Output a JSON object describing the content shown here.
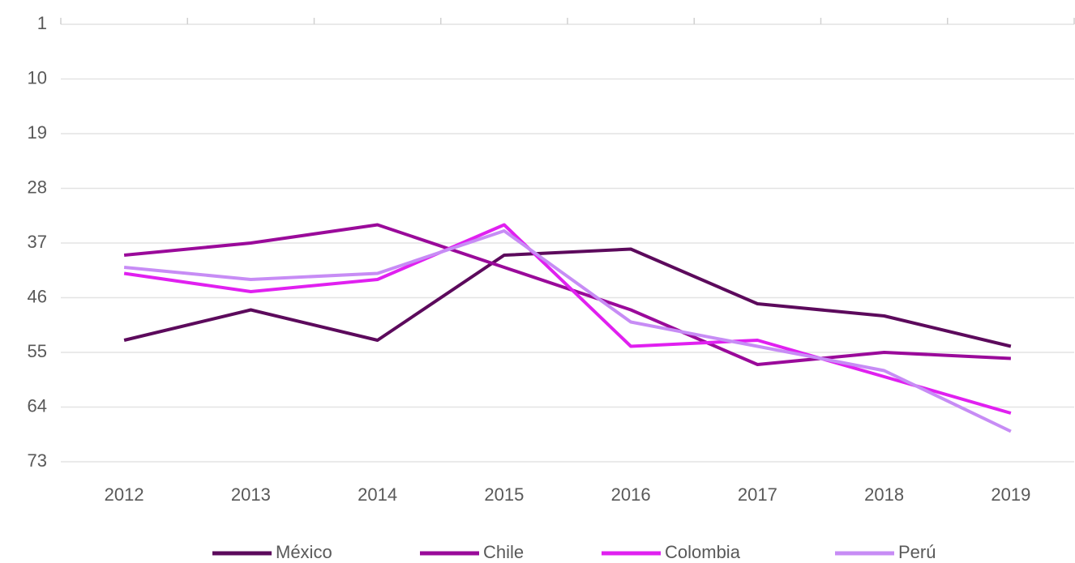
{
  "chart_data": {
    "type": "line",
    "categories": [
      "2012",
      "2013",
      "2014",
      "2015",
      "2016",
      "2017",
      "2018",
      "2019"
    ],
    "series": [
      {
        "name": "México",
        "color": "#5c0a5c",
        "values": [
          53,
          48,
          53,
          39,
          38,
          47,
          49,
          54
        ]
      },
      {
        "name": "Chile",
        "color": "#9a0a9a",
        "values": [
          39,
          37,
          34,
          41,
          48,
          57,
          55,
          56
        ]
      },
      {
        "name": "Colombia",
        "color": "#e020f0",
        "values": [
          42,
          45,
          43,
          34,
          54,
          53,
          59,
          65
        ]
      },
      {
        "name": "Perú",
        "color": "#c78cf5",
        "values": [
          41,
          43,
          42,
          35,
          50,
          54,
          58,
          68
        ]
      }
    ],
    "ylim": [
      1,
      73
    ],
    "y_inverted": true,
    "yticks": [
      1,
      10,
      19,
      28,
      37,
      46,
      55,
      64,
      73
    ],
    "grid": true,
    "legend": "bottom"
  }
}
